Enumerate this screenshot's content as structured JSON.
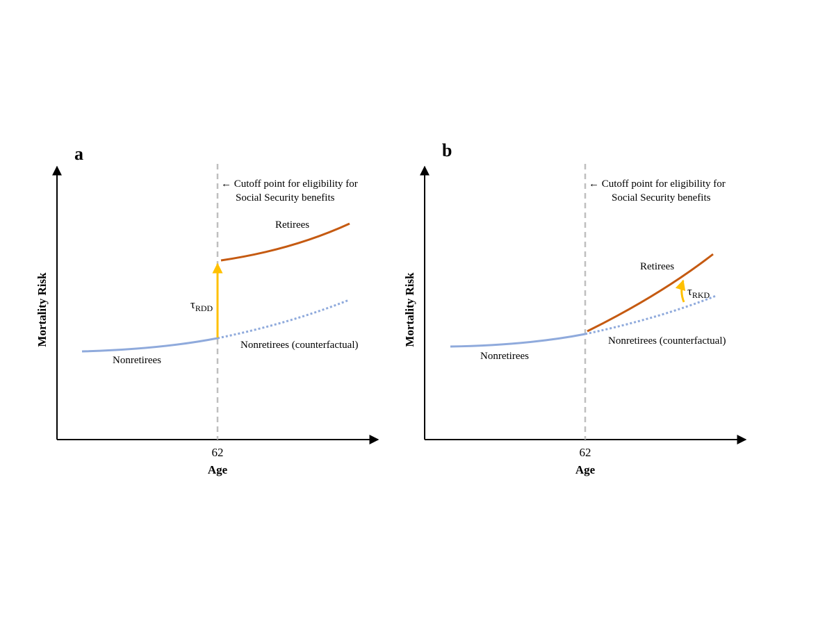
{
  "panels": [
    {
      "letter": "a",
      "y_axis_label": "Mortality Risk",
      "x_axis_label": "Age",
      "cutoff_tick": "62",
      "cutoff_annotation_line1": "← Cutoff point for eligibility for",
      "cutoff_annotation_line2": "Social Security benefits",
      "retirees_label": "Retirees",
      "nonretirees_label": "Nonretirees",
      "counterfactual_label": "Nonretirees (counterfactual)",
      "effect_symbol": "τ",
      "effect_subscript": "RDD"
    },
    {
      "letter": "b",
      "y_axis_label": "Mortality Risk",
      "x_axis_label": "Age",
      "cutoff_tick": "62",
      "cutoff_annotation_line1": "← Cutoff point for eligibility for",
      "cutoff_annotation_line2": "Social Security benefits",
      "retirees_label": "Retirees",
      "nonretirees_label": "Nonretirees",
      "counterfactual_label": "Nonretirees (counterfactual)",
      "effect_symbol": "τ",
      "effect_subscript": "RKD"
    }
  ],
  "colors": {
    "nonretirees": "#8FAADC",
    "retirees": "#C55A11",
    "effect_arrow": "#FFC000",
    "cutoff_line": "#BFBFBF",
    "axis": "#000000"
  }
}
